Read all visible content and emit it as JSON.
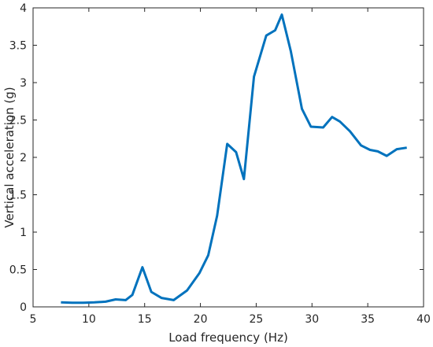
{
  "chart_data": {
    "type": "line",
    "title": "",
    "xlabel": "Load frequency (Hz)",
    "ylabel": "Vertical acceleration (g)",
    "xlim": [
      5,
      40
    ],
    "ylim": [
      0,
      4
    ],
    "xticks": [
      5,
      10,
      15,
      20,
      25,
      30,
      35,
      40
    ],
    "yticks": [
      0,
      0.5,
      1,
      1.5,
      2,
      2.5,
      3,
      3.5,
      4
    ],
    "xtick_labels": [
      "5",
      "10",
      "15",
      "20",
      "25",
      "30",
      "35",
      "40"
    ],
    "ytick_labels": [
      "0",
      "0.5",
      "1",
      "1.5",
      "2",
      "2.5",
      "3",
      "3.5",
      "4"
    ],
    "grid": false,
    "series": [
      {
        "name": "",
        "color": "#0072BD",
        "x": [
          7.5,
          8.5,
          9.5,
          10.5,
          11.5,
          12.4,
          13.3,
          13.9,
          14.8,
          15.6,
          16.5,
          17.6,
          18.8,
          19.9,
          20.7,
          21.5,
          22.4,
          23.2,
          23.9,
          24.8,
          25.9,
          26.7,
          27.3,
          28.1,
          29.1,
          29.9,
          31.0,
          31.8,
          32.5,
          33.4,
          34.4,
          35.2,
          35.9,
          36.7,
          37.6,
          38.5
        ],
        "y": [
          0.06,
          0.055,
          0.055,
          0.06,
          0.07,
          0.1,
          0.09,
          0.16,
          0.53,
          0.2,
          0.12,
          0.09,
          0.22,
          0.45,
          0.69,
          1.22,
          2.18,
          2.07,
          1.71,
          3.08,
          3.63,
          3.7,
          3.91,
          3.42,
          2.65,
          2.41,
          2.4,
          2.54,
          2.48,
          2.35,
          2.16,
          2.1,
          2.08,
          2.02,
          2.11,
          2.13
        ]
      }
    ]
  }
}
